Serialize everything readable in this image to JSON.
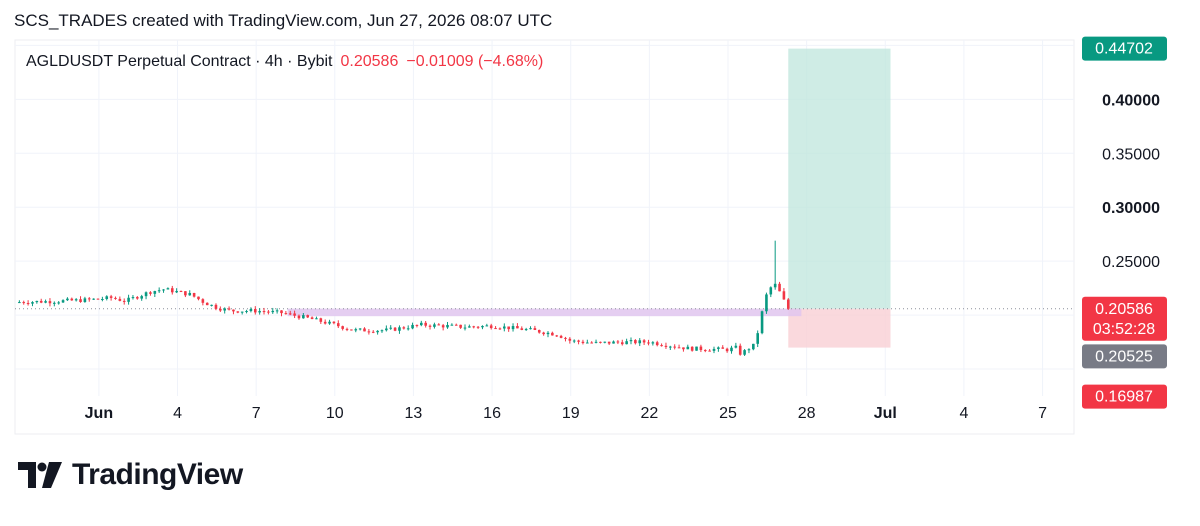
{
  "header": {
    "caption": "SCS_TRADES created with TradingView.com, Jun 27, 2026 08:07 UTC"
  },
  "legend": {
    "symbol": "AGLDUSDT Perpetual Contract · 4h · Bybit",
    "price": "0.20586",
    "change": "−0.01009 (−4.68%)"
  },
  "footer": {
    "brand": "TradingView"
  },
  "colors": {
    "up": "#089981",
    "down": "#f23645",
    "reward_zone": "#bfe5dc",
    "risk_zone": "#f9cfd4",
    "purple_zone": "#e1c6ef",
    "gray_label": "#787b86"
  },
  "chart_data": {
    "type": "candlestick",
    "interval": "4h",
    "ylim": [
      0.125,
      0.455
    ],
    "y_ticks": [
      "0.40000",
      "0.35000",
      "0.30000",
      "0.25000"
    ],
    "bold_ticks": [
      "0.40000",
      "0.30000"
    ],
    "x_ticks": [
      "Jun",
      "4",
      "7",
      "10",
      "13",
      "16",
      "19",
      "22",
      "25",
      "28",
      "Jul",
      "4",
      "7"
    ],
    "x_tick_days": [
      1,
      4,
      7,
      10,
      13,
      16,
      19,
      22,
      25,
      28,
      31,
      34,
      37
    ],
    "x_bold": [
      "Jun",
      "Jul"
    ],
    "x_range_days": [
      -2.2,
      38.2
    ],
    "price_path": [
      [
        -2.2,
        0.212
      ],
      [
        -0.5,
        0.213
      ],
      [
        0.5,
        0.214
      ],
      [
        1.5,
        0.216
      ],
      [
        2.0,
        0.213
      ],
      [
        3.0,
        0.222
      ],
      [
        3.5,
        0.224
      ],
      [
        4.5,
        0.219
      ],
      [
        5.0,
        0.212
      ],
      [
        5.5,
        0.207
      ],
      [
        6.0,
        0.204
      ],
      [
        7.0,
        0.204
      ],
      [
        8.0,
        0.202
      ],
      [
        9.0,
        0.197
      ],
      [
        10.0,
        0.191
      ],
      [
        10.7,
        0.186
      ],
      [
        12.0,
        0.186
      ],
      [
        13.3,
        0.191
      ],
      [
        15.0,
        0.189
      ],
      [
        16.0,
        0.19
      ],
      [
        17.5,
        0.186
      ],
      [
        18.5,
        0.182
      ],
      [
        19.0,
        0.176
      ],
      [
        20.0,
        0.174
      ],
      [
        21.0,
        0.175
      ],
      [
        22.0,
        0.175
      ],
      [
        23.5,
        0.169
      ],
      [
        25.0,
        0.168
      ],
      [
        25.35,
        0.17
      ],
      [
        25.5,
        0.163
      ],
      [
        25.7,
        0.168
      ],
      [
        26.0,
        0.172
      ],
      [
        26.2,
        0.19
      ],
      [
        26.4,
        0.215
      ],
      [
        26.6,
        0.225
      ],
      [
        26.8,
        0.228
      ],
      [
        27.0,
        0.22
      ],
      [
        27.2,
        0.21
      ],
      [
        27.3,
        0.206
      ]
    ],
    "spike_high": 0.269,
    "last_price": "0.20586",
    "countdown": "03:52:28",
    "other_level": "0.20525",
    "position": {
      "entry": 0.20586,
      "target": 0.44702,
      "stop": 0.16987,
      "start_day": 27.3,
      "end_day": 31.2,
      "target_label": "0.44702",
      "stop_label": "0.16987"
    },
    "purple_zone": {
      "start_day": 8.2,
      "end_day": 27.8,
      "top": 0.206,
      "bottom": 0.199
    }
  }
}
